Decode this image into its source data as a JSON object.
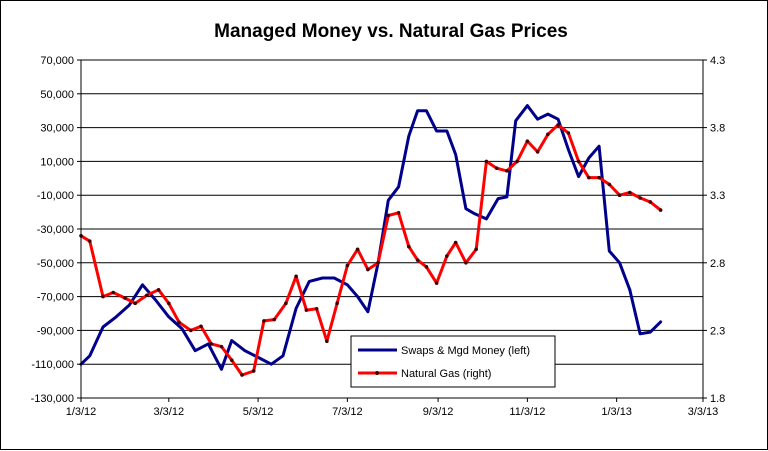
{
  "chart_data": {
    "type": "line",
    "title": "Managed Money vs. Natural Gas Prices",
    "xlabel": "",
    "ylabel_left": "",
    "ylabel_right": "",
    "x_tick_labels": [
      "1/3/12",
      "3/3/12",
      "5/3/12",
      "7/3/12",
      "9/3/12",
      "11/3/12",
      "1/3/13",
      "3/3/13"
    ],
    "x_tick_values": [
      0,
      60,
      121,
      182,
      244,
      305,
      366,
      425
    ],
    "x_range": [
      0,
      425
    ],
    "left_axis": {
      "ylim": [
        -130000,
        70000
      ],
      "ticks": [
        -130000,
        -110000,
        -90000,
        -70000,
        -50000,
        -30000,
        -10000,
        10000,
        30000,
        50000,
        70000
      ],
      "tick_labels": [
        "-130,000",
        "-110,000",
        "-90,000",
        "-70,000",
        "-50,000",
        "-30,000",
        "-10,000",
        "10,000",
        "30,000",
        "50,000",
        "70,000"
      ]
    },
    "right_axis": {
      "ylim": [
        1.8,
        4.3
      ],
      "ticks": [
        1.8,
        2.3,
        2.8,
        3.3,
        3.8,
        4.3
      ],
      "tick_labels": [
        "1.8",
        "2.3",
        "2.8",
        "3.3",
        "3.8",
        "4.3"
      ]
    },
    "grid": "horizontal",
    "legend_position": "bottom-center",
    "series": [
      {
        "name": "Swaps & Mgd Money (left)",
        "axis": "left",
        "color": "#00008b",
        "x": [
          0,
          6,
          15,
          24,
          33,
          42,
          51,
          60,
          69,
          78,
          87,
          96,
          103,
          112,
          121,
          130,
          138,
          147,
          156,
          165,
          173,
          182,
          189,
          196,
          203,
          210,
          217,
          224,
          230,
          236,
          243,
          250,
          256,
          263,
          269,
          277,
          285,
          291,
          297,
          305,
          312,
          319,
          326,
          333,
          340,
          347,
          354,
          361,
          368,
          375
        ],
        "values": [
          -110000,
          -105000,
          -88000,
          -82000,
          -75000,
          -63000,
          -72000,
          -82000,
          -89000,
          -102000,
          -98000,
          -113000,
          -96000,
          -102000,
          -106000,
          -110000,
          -105000,
          -77000,
          -61000,
          -59000,
          -59000,
          -63000,
          -70000,
          -79000,
          -50000,
          -13000,
          -5000,
          25000,
          40000,
          40000,
          28000,
          28000,
          14000,
          -18000,
          -21000,
          -24000,
          -12000,
          -11000,
          34000,
          43000,
          35000,
          38000,
          35000,
          17000,
          1000,
          12000,
          19000,
          -43000,
          -50000,
          -66000
        ]
      },
      {
        "name": "Swaps & Mgd Money (left) tail",
        "axis": "left",
        "hidden_legend": true,
        "color": "#00008b",
        "x": [
          375,
          382,
          389,
          396
        ],
        "values": [
          -66000,
          -92000,
          -91000,
          -85000
        ]
      },
      {
        "name": "Natural Gas (right)",
        "axis": "right",
        "color": "#ff0000",
        "x": [
          0,
          6,
          15,
          22,
          30,
          37,
          45,
          53,
          60,
          67,
          75,
          82,
          89,
          96,
          103,
          110,
          118,
          125,
          132,
          140,
          147,
          154,
          161,
          168,
          175,
          182,
          189,
          196,
          203,
          210,
          217,
          224,
          230,
          236,
          243,
          250,
          256,
          263,
          270,
          277,
          284,
          291,
          298,
          305,
          312,
          319,
          326,
          333,
          340,
          347,
          354,
          361,
          368,
          375,
          382,
          389,
          396
        ],
        "values": [
          3.0,
          2.96,
          2.55,
          2.58,
          2.54,
          2.5,
          2.56,
          2.6,
          2.5,
          2.36,
          2.3,
          2.33,
          2.2,
          2.18,
          2.08,
          1.97,
          2.0,
          2.37,
          2.38,
          2.5,
          2.7,
          2.45,
          2.46,
          2.22,
          2.5,
          2.78,
          2.9,
          2.75,
          2.8,
          3.15,
          3.17,
          2.92,
          2.82,
          2.77,
          2.65,
          2.85,
          2.95,
          2.8,
          2.9,
          3.55,
          3.5,
          3.48,
          3.55,
          3.7,
          3.62,
          3.75,
          3.82,
          3.76,
          3.55,
          3.43,
          3.43,
          3.38,
          3.3,
          3.32,
          3.28,
          3.25,
          3.19
        ]
      }
    ]
  }
}
